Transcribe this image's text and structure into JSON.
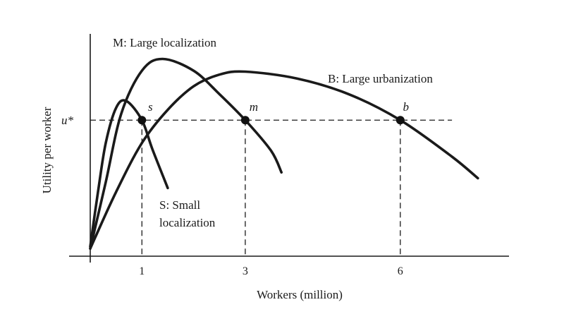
{
  "chart_data": {
    "type": "line",
    "xlabel": "Workers (million)",
    "ylabel": "Utility per worker",
    "xlim": [
      0,
      8.8
    ],
    "ylim": [
      0,
      100
    ],
    "grid": false,
    "x_ticks": [
      {
        "value": 1,
        "label": "1"
      },
      {
        "value": 3,
        "label": "3"
      },
      {
        "value": 6,
        "label": "6"
      }
    ],
    "y_ticks": [
      {
        "value": 66.7,
        "label": "u*"
      }
    ],
    "reference_line": {
      "y": 66.7,
      "x_end": 7.0,
      "style": "dashed"
    },
    "series": [
      {
        "name": "S: Small localization",
        "name_lines": [
          "S: Small",
          "localization"
        ],
        "x": [
          0,
          0.15,
          0.3,
          0.5,
          0.7,
          1.0,
          1.2,
          1.5
        ],
        "y": [
          2,
          30,
          55,
          73,
          76.5,
          66.7,
          52,
          32
        ]
      },
      {
        "name": "M: Large localization",
        "name_lines": [
          "M: Large localization"
        ],
        "x": [
          0,
          0.3,
          0.6,
          1.0,
          1.4,
          2.0,
          2.5,
          3.0,
          3.5,
          3.7
        ],
        "y": [
          1,
          35,
          70,
          92,
          98,
          92,
          80,
          66.7,
          51,
          40
        ]
      },
      {
        "name": "B: Large urbanization",
        "name_lines": [
          "B: Large urbanization"
        ],
        "x": [
          0,
          0.5,
          1.0,
          1.5,
          2.0,
          2.5,
          3.0,
          4.0,
          5.0,
          6.0,
          7.0,
          7.5
        ],
        "y": [
          1,
          30,
          55,
          72,
          84,
          90,
          91.5,
          88,
          80,
          66.7,
          48,
          37
        ]
      }
    ],
    "points": [
      {
        "label": "s",
        "x": 1,
        "y": 66.7
      },
      {
        "label": "m",
        "x": 3,
        "y": 66.7
      },
      {
        "label": "b",
        "x": 6,
        "y": 66.7
      }
    ]
  }
}
